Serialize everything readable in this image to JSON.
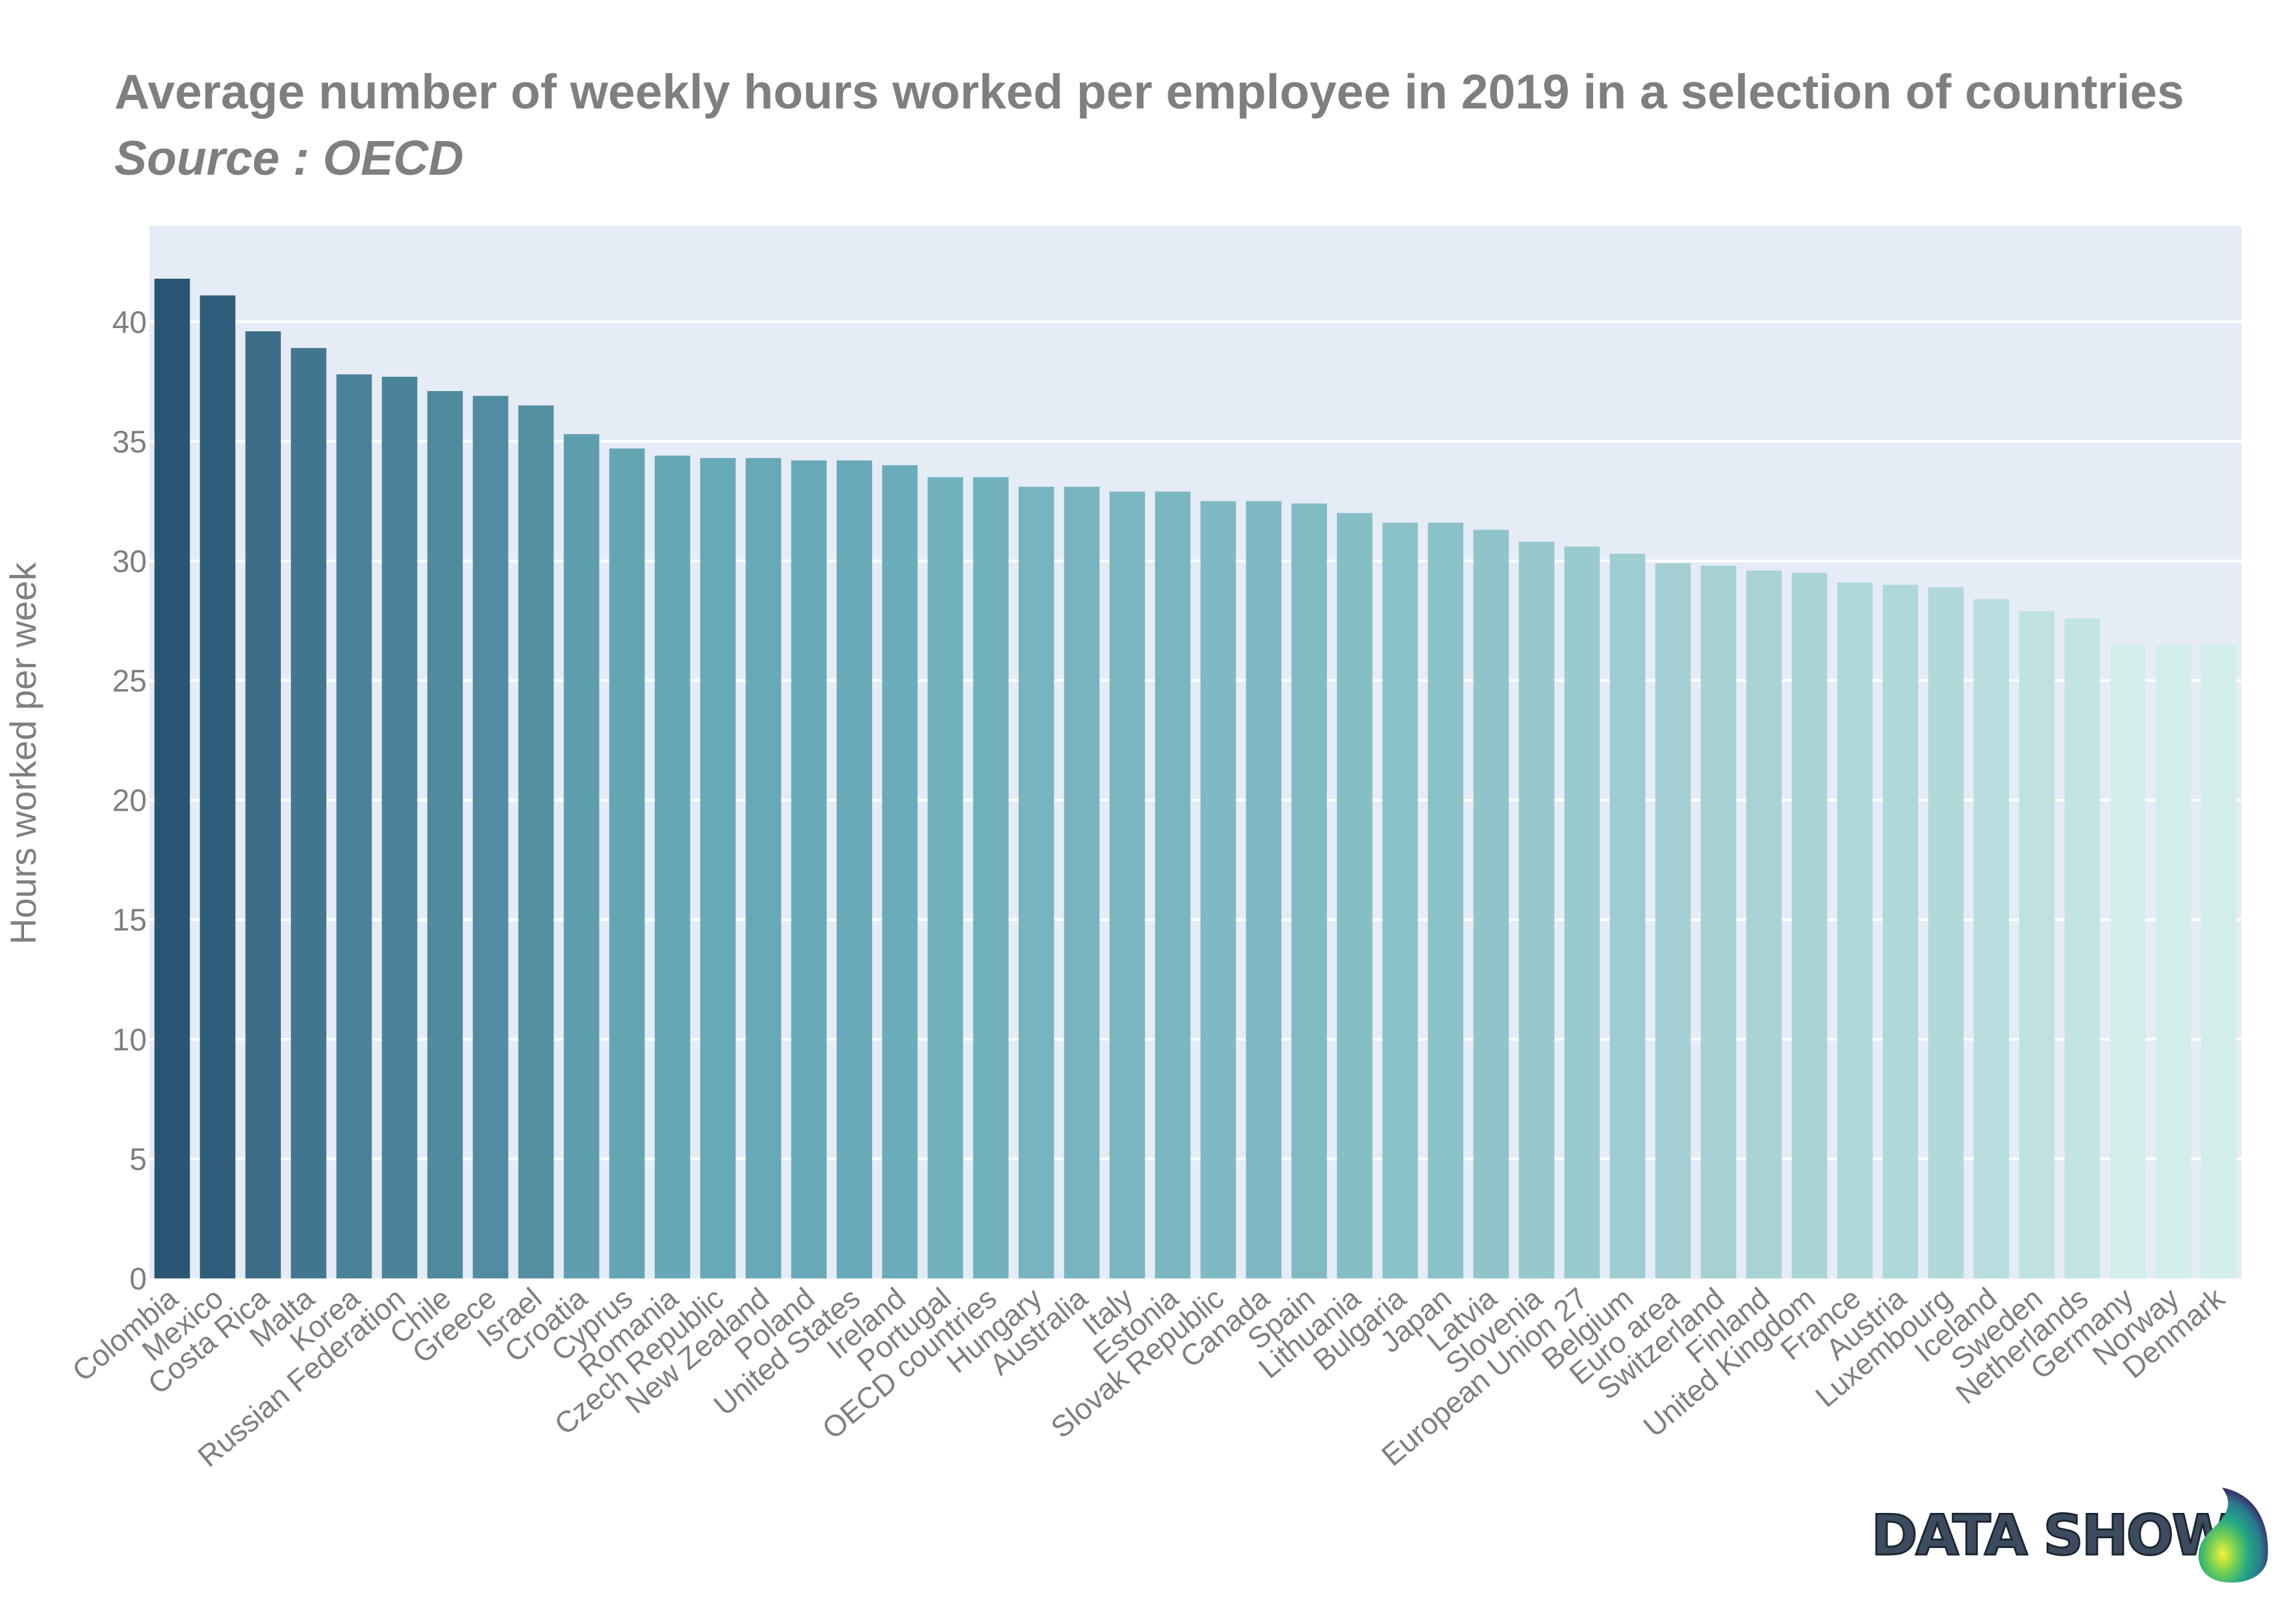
{
  "chart_data": {
    "type": "bar",
    "title": "Average number of weekly hours worked per employee in 2019 in a selection of countries",
    "subtitle": "Source : OECD",
    "ylabel": "Hours worked per week",
    "xlabel": "",
    "ylim": [
      0,
      44
    ],
    "yticks": [
      0,
      5,
      10,
      15,
      20,
      25,
      30,
      35,
      40
    ],
    "grid": true,
    "categories": [
      "Colombia",
      "Mexico",
      "Costa Rica",
      "Malta",
      "Korea",
      "Russian Federation",
      "Chile",
      "Greece",
      "Israel",
      "Croatia",
      "Cyprus",
      "Romania",
      "Czech Republic",
      "New Zealand",
      "Poland",
      "United States",
      "Ireland",
      "Portugal",
      "OECD countries",
      "Hungary",
      "Australia",
      "Italy",
      "Estonia",
      "Slovak Republic",
      "Canada",
      "Spain",
      "Lithuania",
      "Bulgaria",
      "Japan",
      "Latvia",
      "Slovenia",
      "European Union 27",
      "Belgium",
      "Euro area",
      "Switzerland",
      "Finland",
      "United Kingdom",
      "France",
      "Austria",
      "Luxembourg",
      "Iceland",
      "Sweden",
      "Netherlands",
      "Germany",
      "Norway",
      "Denmark"
    ],
    "values": [
      41.8,
      41.1,
      39.6,
      38.9,
      37.8,
      37.7,
      37.1,
      36.9,
      36.5,
      35.3,
      34.7,
      34.4,
      34.3,
      34.3,
      34.2,
      34.2,
      34.0,
      33.5,
      33.5,
      33.1,
      33.1,
      32.9,
      32.9,
      32.5,
      32.5,
      32.4,
      32.0,
      31.6,
      31.6,
      31.3,
      30.8,
      30.6,
      30.3,
      29.9,
      29.8,
      29.6,
      29.5,
      29.1,
      29.0,
      28.9,
      28.4,
      27.9,
      27.6,
      26.5,
      26.5,
      26.5
    ],
    "colorscale": [
      "#2a5674",
      "#68abb8",
      "#d2eeea"
    ],
    "plot_background": "#e5ecf6",
    "text_color": "#7f7f7f"
  },
  "logo": {
    "text": "DATA SHOW"
  }
}
